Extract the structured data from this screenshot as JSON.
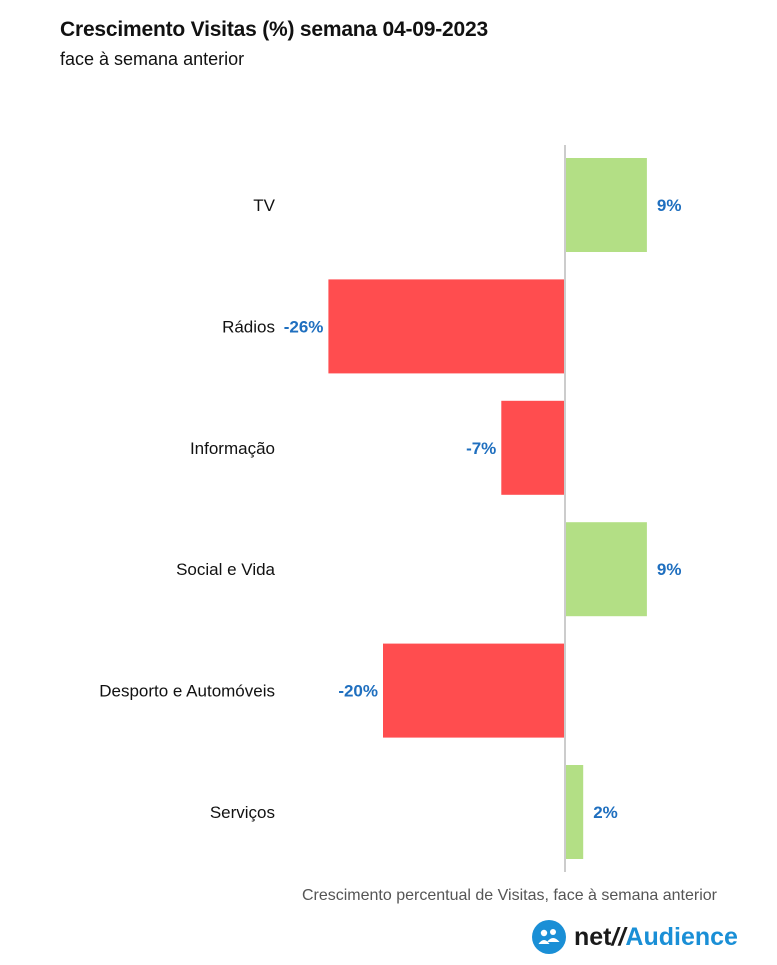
{
  "header": {
    "title": "Crescimento Visitas (%) semana 04-09-2023",
    "subtitle": "face à semana anterior"
  },
  "footer": {
    "note": "Crescimento percentual de Visitas, face à semana anterior",
    "logo_net": "net",
    "logo_slash": "//",
    "logo_audience": "Audience"
  },
  "colors": {
    "positive": "#b3df85",
    "negative": "#ff4d4f",
    "label": "#1f6fbf",
    "axis": "#cccccc"
  },
  "chart_data": {
    "type": "bar",
    "orientation": "horizontal",
    "categories": [
      "TV",
      "Rádios",
      "Informação",
      "Social e Vida",
      "Desporto e Automóveis",
      "Serviços"
    ],
    "values": [
      9,
      -26,
      -7,
      9,
      -20,
      2
    ],
    "data_labels": [
      "9%",
      "-26%",
      "-7%",
      "9%",
      "-20%",
      "2%"
    ],
    "value_unit": "%",
    "xlim": [
      -26,
      9
    ],
    "grid": false,
    "legend": "none"
  }
}
